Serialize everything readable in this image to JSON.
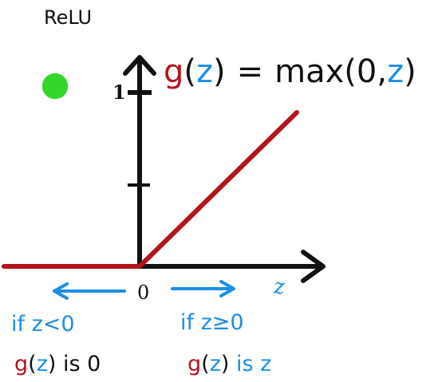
{
  "title": "ReLU",
  "formula": {
    "g": "g",
    "lparen": "(",
    "z": "z",
    "rparen": ")",
    "eq": "=",
    "max": "max",
    "arg_open": "(0,",
    "arg_z": "z",
    "arg_close": ")"
  },
  "axis": {
    "x_label": "z",
    "origin_label": "0",
    "y_tick_label": "1"
  },
  "annotations": {
    "left_condition": "if z<0",
    "right_condition": "if z≥0",
    "left_result_g": "g",
    "left_result_z": "z",
    "left_result_tail": "is 0",
    "right_result_g": "g",
    "right_result_z": "z",
    "right_result_tail": "is z"
  },
  "colors": {
    "axis": "#111111",
    "relu": "#b3141c",
    "blue": "#1b8fe5",
    "red": "#b3141c",
    "dot": "#34d62b"
  }
}
